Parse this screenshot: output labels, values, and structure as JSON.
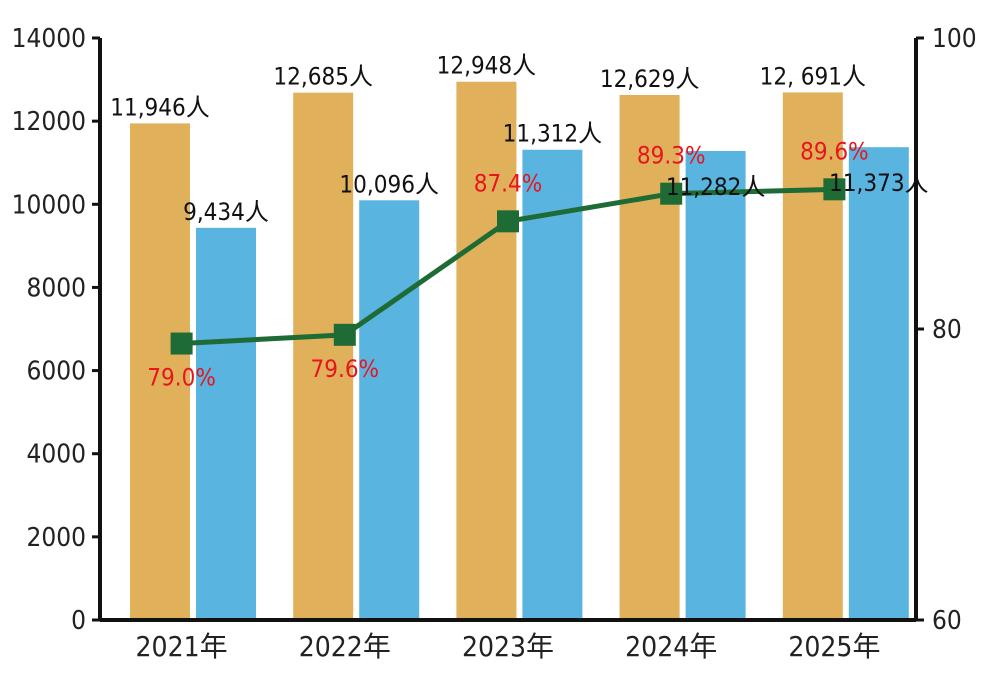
{
  "chart_data": {
    "type": "bar",
    "categories": [
      "2021年",
      "2022年",
      "2023年",
      "2024年",
      "2025年"
    ],
    "series": [
      {
        "type": "bar",
        "axis": "left",
        "color": "#e0b15a",
        "values": [
          11946,
          12685,
          12948,
          12629,
          12691
        ],
        "labels": [
          "11,946人",
          "12,685人",
          "12,948人",
          "12,629人",
          "12, 691人"
        ]
      },
      {
        "type": "bar",
        "axis": "left",
        "color": "#5ab4e0",
        "values": [
          9434,
          10096,
          11312,
          11282,
          11373
        ],
        "labels": [
          "9,434人",
          "10,096人",
          "11,312人",
          "11,282人",
          "11,373人"
        ]
      },
      {
        "type": "line",
        "axis": "right",
        "color": "#1e6b35",
        "label_color": "#e8141e",
        "values": [
          79.0,
          79.6,
          87.4,
          89.3,
          89.6
        ],
        "labels": [
          "79.0%",
          "79.6%",
          "87.4%",
          "89.3%",
          "89.6%"
        ]
      }
    ],
    "y_left": {
      "min": 0,
      "max": 14000,
      "ticks": [
        "0",
        "2000",
        "4000",
        "6000",
        "8000",
        "10000",
        "12000",
        "14000"
      ]
    },
    "y_right": {
      "min": 60,
      "max": 100,
      "ticks": [
        "60",
        "80",
        "100"
      ]
    },
    "grid": false,
    "legend": "none"
  }
}
